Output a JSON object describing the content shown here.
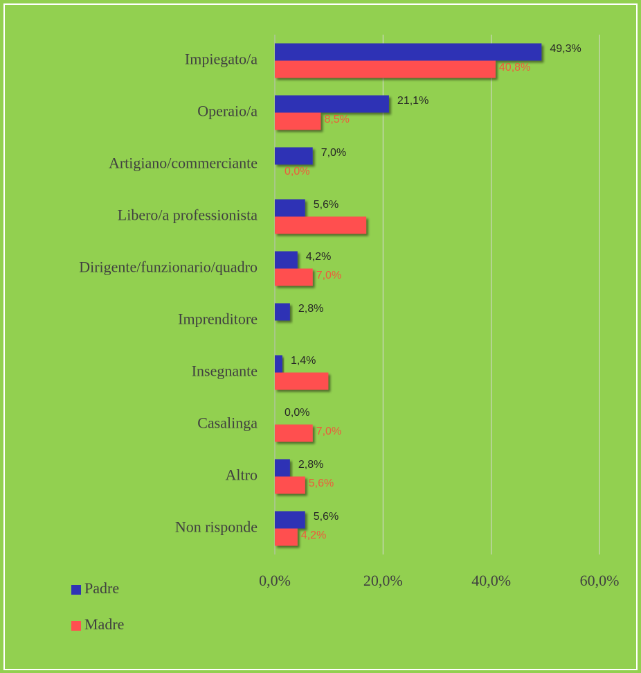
{
  "chart_data": {
    "type": "hbar",
    "categories": [
      "Impiegato/a",
      "Operaio/a",
      "Artigiano/commerciante",
      "Libero/a professionista",
      "Dirigente/funzionario/quadro",
      "Imprenditore",
      "Insegnante",
      "Casalinga",
      "Altro",
      "Non risponde"
    ],
    "series": [
      {
        "name": "Padre",
        "color": "#2f33b5",
        "label_color": "#262626",
        "values": [
          49.3,
          21.1,
          7.0,
          5.6,
          4.2,
          2.8,
          1.4,
          0.0,
          2.8,
          5.6
        ],
        "value_labels": [
          "49,3%",
          "21,1%",
          "7,0%",
          "5,6%",
          "4,2%",
          "2,8%",
          "1,4%",
          "0,0%",
          "2,8%",
          "5,6%"
        ]
      },
      {
        "name": "Madre",
        "color": "#ff5050",
        "label_color": "#ee5a3c",
        "values": [
          40.8,
          8.5,
          0.0,
          16.9,
          7.0,
          0.0,
          9.9,
          7.0,
          5.6,
          4.2
        ],
        "value_labels": [
          "40,8%",
          "8,5%",
          "0,0%",
          null,
          "7,0%",
          null,
          null,
          "7,0%",
          "5,6%",
          "4,2%"
        ]
      }
    ],
    "xlim": [
      0,
      60
    ],
    "xticks": [
      {
        "value": 0,
        "label": "0,0%"
      },
      {
        "value": 20,
        "label": "20,0%"
      },
      {
        "value": 40,
        "label": "40,0%"
      },
      {
        "value": 60,
        "label": "60,0%"
      }
    ],
    "grid": true,
    "legend": "bottom-left",
    "background": "#92d050"
  }
}
